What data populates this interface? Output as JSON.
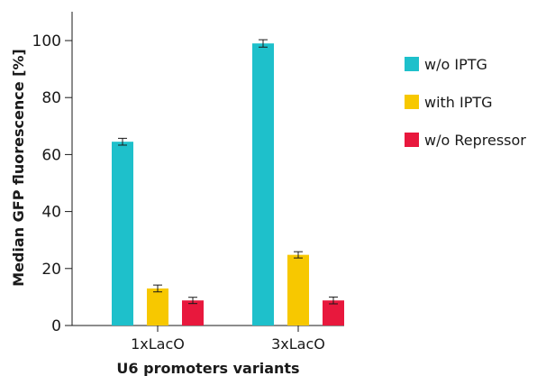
{
  "chart_data": {
    "type": "bar",
    "title": "",
    "xlabel": "U6 promoters variants",
    "ylabel": "Median GFP fluorescence [%]",
    "ylim": [
      0,
      110
    ],
    "yticks": [
      0,
      20,
      40,
      60,
      80,
      100
    ],
    "grid": false,
    "legend_position": "right",
    "categories": [
      "1xLacO",
      "3xLacO"
    ],
    "series": [
      {
        "name": "w/o IPTG",
        "color": "#1ec0cb",
        "values": [
          64.5,
          99.0
        ],
        "errors": [
          1.2,
          1.3
        ]
      },
      {
        "name": "with IPTG",
        "color": "#f7c800",
        "values": [
          13.0,
          24.8
        ],
        "errors": [
          1.2,
          1.1
        ]
      },
      {
        "name": "w/o Repressor",
        "color": "#e8183d",
        "values": [
          8.8,
          8.8
        ],
        "errors": [
          1.1,
          1.2
        ]
      }
    ]
  }
}
